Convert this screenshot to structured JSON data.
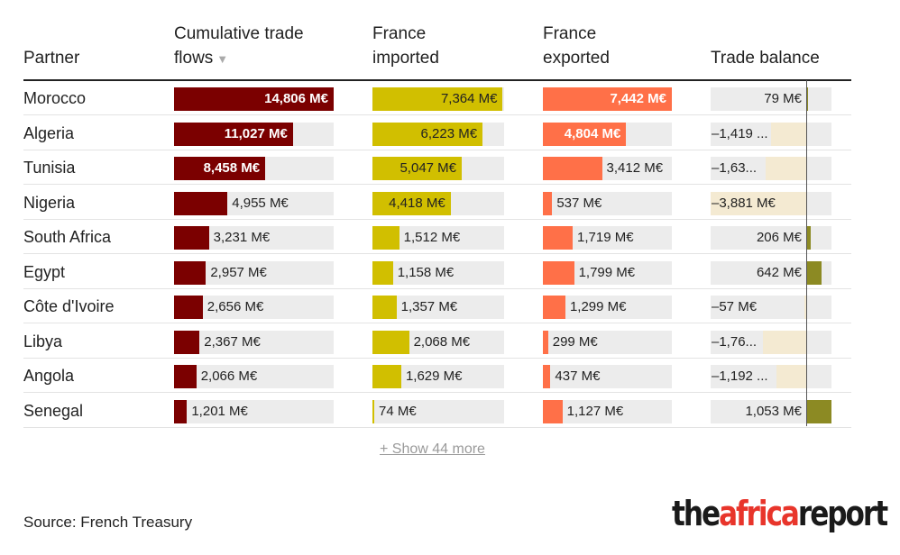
{
  "headers": {
    "partner": "Partner",
    "cumulative_line1": "Cumulative trade",
    "cumulative_line2": "flows",
    "sort_indicator": "▼",
    "imported_line1": "France",
    "imported_line2": "imported",
    "exported_line1": "France",
    "exported_line2": "exported",
    "balance": "Trade balance"
  },
  "show_more": "+ Show 44 more",
  "source": "Source: French Treasury",
  "logo": {
    "part1": "the",
    "part2": "africa",
    "part3": "report"
  },
  "colors": {
    "cumulative": "#7b0000",
    "imported": "#d1bf00",
    "exported": "#ff7048",
    "balance_positive": "#8c8a23",
    "balance_negative": "#f4ead2",
    "track": "#ececec"
  },
  "chart_data": {
    "type": "table",
    "unit": "M€",
    "columns": [
      "Partner",
      "Cumulative trade flows",
      "France imported",
      "France exported",
      "Trade balance"
    ],
    "sorted_by": "Cumulative trade flows",
    "rows": [
      {
        "partner": "Morocco",
        "cumulative": 14806,
        "imported": 7364,
        "exported": 7442,
        "balance": 79,
        "labels": {
          "cumulative": "14,806 M€",
          "imported": "7,364 M€",
          "exported": "7,442 M€",
          "balance": "79 M€"
        }
      },
      {
        "partner": "Algeria",
        "cumulative": 11027,
        "imported": 6223,
        "exported": 4804,
        "balance": -1419,
        "labels": {
          "cumulative": "11,027 M€",
          "imported": "6,223 M€",
          "exported": "4,804 M€",
          "balance": "–1,419 ..."
        }
      },
      {
        "partner": "Tunisia",
        "cumulative": 8458,
        "imported": 5047,
        "exported": 3412,
        "balance": -1635,
        "labels": {
          "cumulative": "8,458 M€",
          "imported": "5,047 M€",
          "exported": "3,412 M€",
          "balance": "–1,63..."
        }
      },
      {
        "partner": "Nigeria",
        "cumulative": 4955,
        "imported": 4418,
        "exported": 537,
        "balance": -3881,
        "labels": {
          "cumulative": "4,955 M€",
          "imported": "4,418 M€",
          "exported": "537 M€",
          "balance": "–3,881 M€"
        }
      },
      {
        "partner": "South Africa",
        "cumulative": 3231,
        "imported": 1512,
        "exported": 1719,
        "balance": 206,
        "labels": {
          "cumulative": "3,231 M€",
          "imported": "1,512 M€",
          "exported": "1,719 M€",
          "balance": "206 M€"
        }
      },
      {
        "partner": "Egypt",
        "cumulative": 2957,
        "imported": 1158,
        "exported": 1799,
        "balance": 642,
        "labels": {
          "cumulative": "2,957 M€",
          "imported": "1,158 M€",
          "exported": "1,799 M€",
          "balance": "642 M€"
        }
      },
      {
        "partner": "Côte d'Ivoire",
        "cumulative": 2656,
        "imported": 1357,
        "exported": 1299,
        "balance": -57,
        "labels": {
          "cumulative": "2,656 M€",
          "imported": "1,357 M€",
          "exported": "1,299 M€",
          "balance": "–57 M€"
        }
      },
      {
        "partner": "Libya",
        "cumulative": 2367,
        "imported": 2068,
        "exported": 299,
        "balance": -1769,
        "labels": {
          "cumulative": "2,367 M€",
          "imported": "2,068 M€",
          "exported": "299 M€",
          "balance": "–1,76..."
        }
      },
      {
        "partner": "Angola",
        "cumulative": 2066,
        "imported": 1629,
        "exported": 437,
        "balance": -1192,
        "labels": {
          "cumulative": "2,066 M€",
          "imported": "1,629 M€",
          "exported": "437 M€",
          "balance": "–1,192 ..."
        }
      },
      {
        "partner": "Senegal",
        "cumulative": 1201,
        "imported": 74,
        "exported": 1127,
        "balance": 1053,
        "labels": {
          "cumulative": "1,201 M€",
          "imported": "74 M€",
          "exported": "1,127 M€",
          "balance": "1,053 M€"
        }
      }
    ],
    "scales": {
      "cumulative_max": 14806,
      "imported_max": 7442,
      "exported_max": 7442,
      "balance_range": [
        -3881,
        1053
      ]
    }
  }
}
